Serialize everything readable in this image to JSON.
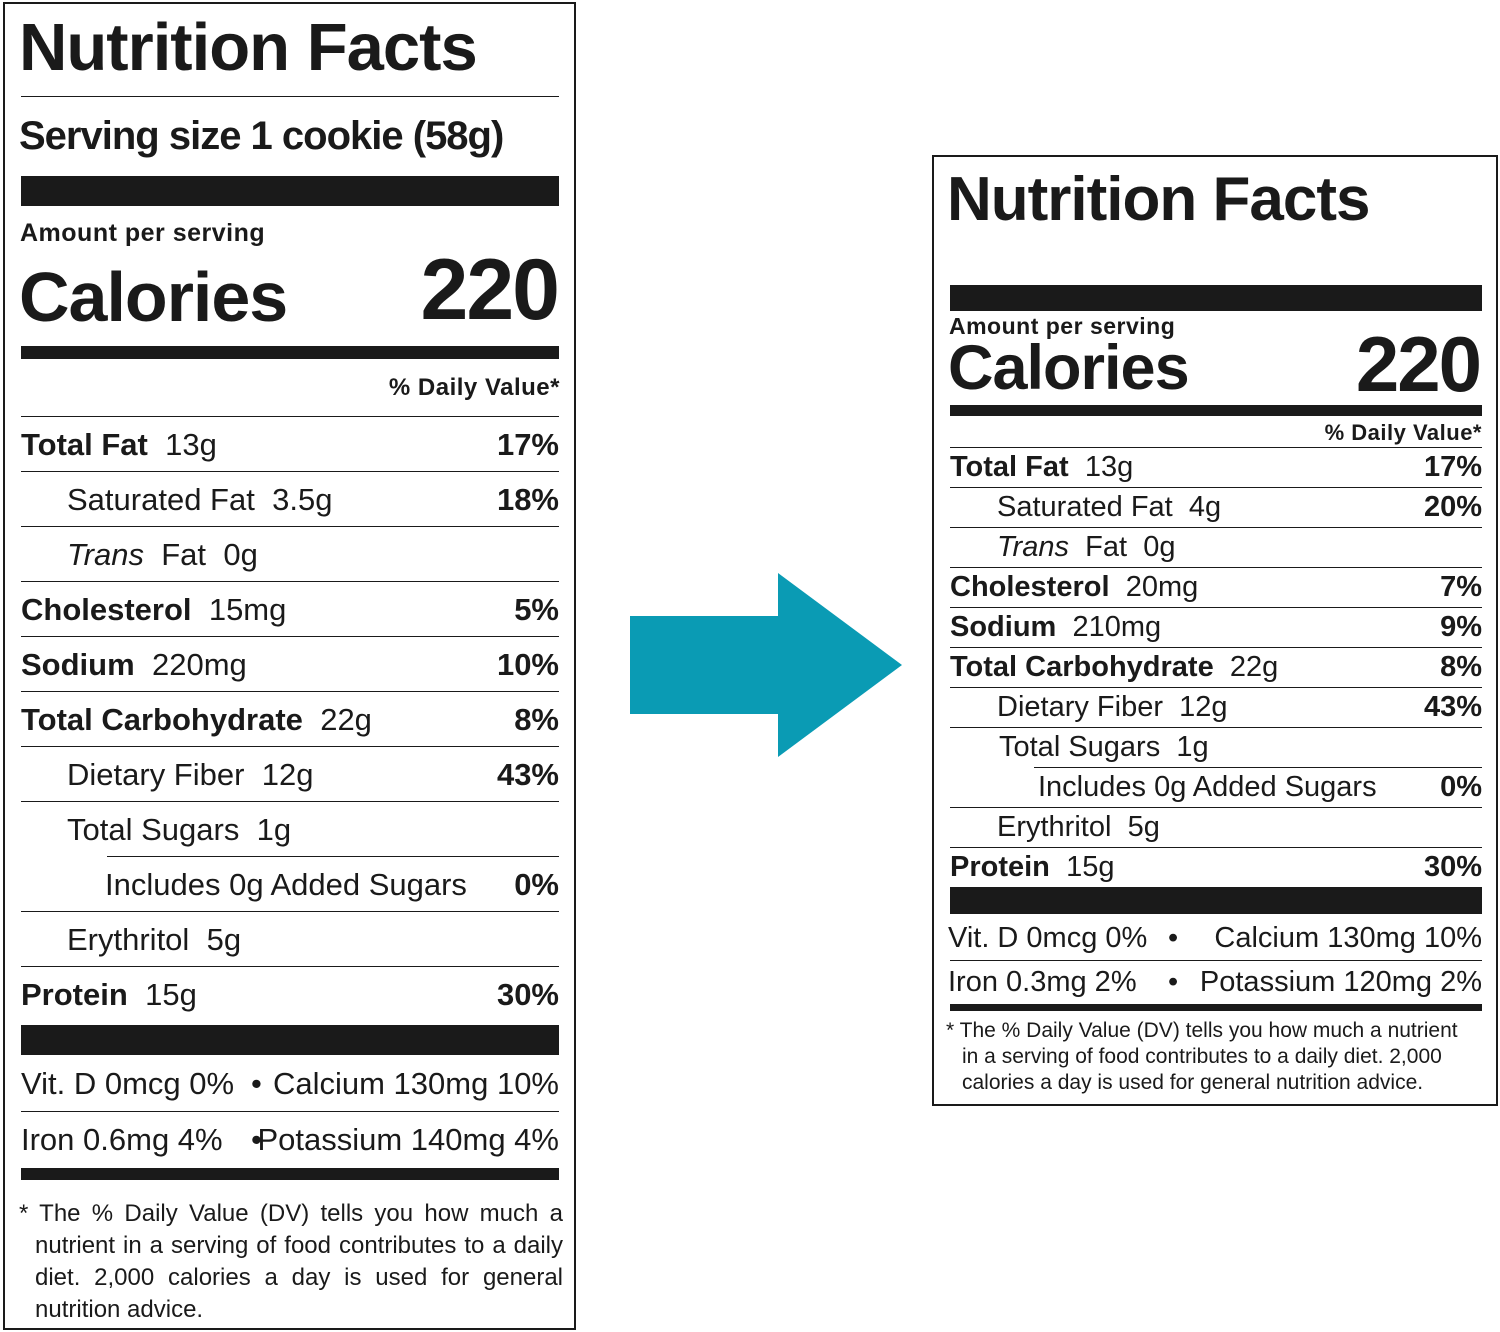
{
  "left_label": {
    "title": "Nutrition Facts",
    "serving_size": "Serving size 1 cookie (58g)",
    "amount_per_serving": "Amount per serving",
    "calories_label": "Calories",
    "calories_value": "220",
    "daily_value_header": "% Daily Value*",
    "nutrients": [
      {
        "name": "Total Fat",
        "amount": "13g",
        "dv": "17%"
      },
      {
        "name": "Saturated Fat",
        "amount": "3.5g",
        "dv": "18%"
      },
      {
        "name": "Trans",
        "name_rest": "Fat",
        "amount": "0g",
        "dv": ""
      },
      {
        "name": "Cholesterol",
        "amount": "15mg",
        "dv": "5%"
      },
      {
        "name": "Sodium",
        "amount": "220mg",
        "dv": "10%"
      },
      {
        "name": "Total Carbohydrate",
        "amount": "22g",
        "dv": "8%"
      },
      {
        "name": "Dietary Fiber",
        "amount": "12g",
        "dv": "43%"
      },
      {
        "name": "Total Sugars",
        "amount": "1g",
        "dv": ""
      },
      {
        "name": "Includes 0g Added Sugars",
        "amount": "",
        "dv": "0%"
      },
      {
        "name": "Erythritol",
        "amount": "5g",
        "dv": ""
      },
      {
        "name": "Protein",
        "amount": "15g",
        "dv": "30%"
      }
    ],
    "vitamins": [
      {
        "left": "Vit. D 0mcg 0%",
        "right": "Calcium 130mg 10%"
      },
      {
        "left": "Iron 0.6mg 4%",
        "right": "Potassium 140mg 4%"
      }
    ],
    "footnote": "* The % Daily Value (DV) tells you how much a nutrient in a serving of food contributes to a daily diet. 2,000 calories a day is used for general nutrition advice.",
    "footnote_lines": [
      "* The % Daily Value (DV) tells you how much a",
      "nutrient in a serving of food contributes to a daily",
      "diet. 2,000 calories a day is used for general",
      "nutrition advice."
    ]
  },
  "right_label": {
    "title": "Nutrition Facts",
    "amount_per_serving": "Amount per serving",
    "calories_label": "Calories",
    "calories_value": "220",
    "daily_value_header": "% Daily Value*",
    "nutrients": [
      {
        "name": "Total Fat",
        "amount": "13g",
        "dv": "17%"
      },
      {
        "name": "Saturated Fat",
        "amount": "4g",
        "dv": "20%"
      },
      {
        "name": "Trans",
        "name_rest": "Fat",
        "amount": "0g",
        "dv": ""
      },
      {
        "name": "Cholesterol",
        "amount": "20mg",
        "dv": "7%"
      },
      {
        "name": "Sodium",
        "amount": "210mg",
        "dv": "9%"
      },
      {
        "name": "Total Carbohydrate",
        "amount": "22g",
        "dv": "8%"
      },
      {
        "name": "Dietary Fiber",
        "amount": "12g",
        "dv": "43%"
      },
      {
        "name": "Total Sugars",
        "amount": "1g",
        "dv": ""
      },
      {
        "name": "Includes 0g Added Sugars",
        "amount": "",
        "dv": "0%"
      },
      {
        "name": "Erythritol",
        "amount": "5g",
        "dv": ""
      },
      {
        "name": "Protein",
        "amount": "15g",
        "dv": "30%"
      }
    ],
    "vitamins": [
      {
        "left": "Vit. D 0mcg 0%",
        "right": "Calcium 130mg 10%"
      },
      {
        "left": "Iron 0.3mg 2%",
        "right": "Potassium 120mg 2%"
      }
    ],
    "footnote_lines": [
      "* The % Daily Value (DV) tells you how much a nutrient",
      "in a serving of food contributes to a daily diet. 2,000",
      "calories a day is used for general nutrition advice."
    ]
  },
  "separator_dot": "•",
  "arrow_color": "#0a9bb4",
  "ink_color": "#1a1a1a"
}
